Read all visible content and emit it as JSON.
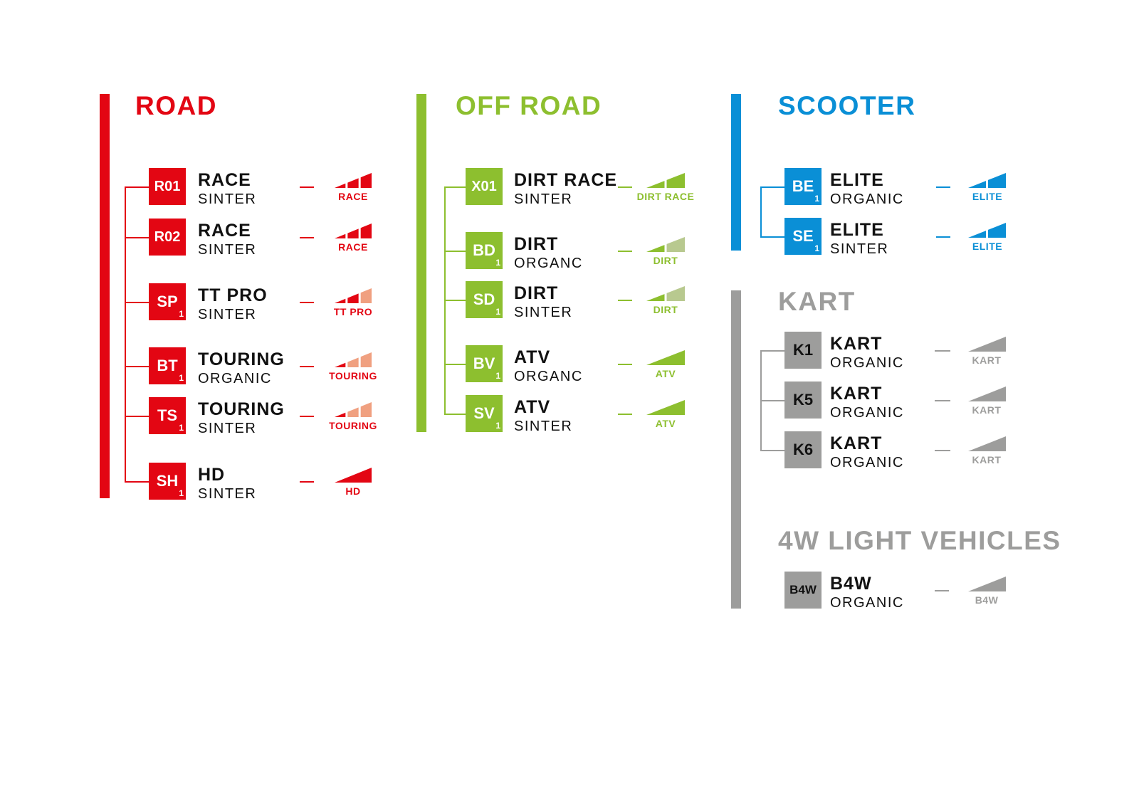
{
  "sections": [
    {
      "id": "road",
      "title": "ROAD",
      "color": "#e30613",
      "light": "#f0a080",
      "rows": [
        {
          "code": "R01",
          "sub": "",
          "name": "RACE",
          "compound": "SINTER",
          "rating": "RACE",
          "segments": 3,
          "filled": 3
        },
        {
          "code": "R02",
          "sub": "",
          "name": "RACE",
          "compound": "SINTER",
          "rating": "RACE",
          "segments": 3,
          "filled": 3
        },
        {
          "code": "SP",
          "sub": "1",
          "name": "TT PRO",
          "compound": "SINTER",
          "rating": "TT PRO",
          "segments": 3,
          "filled": 2
        },
        {
          "code": "BT",
          "sub": "1",
          "name": "TOURING",
          "compound": "ORGANIC",
          "rating": "TOURING",
          "segments": 3,
          "filled": 1
        },
        {
          "code": "TS",
          "sub": "1",
          "name": "TOURING",
          "compound": "SINTER",
          "rating": "TOURING",
          "segments": 3,
          "filled": 1
        },
        {
          "code": "SH",
          "sub": "1",
          "name": "HD",
          "compound": "SINTER",
          "rating": "HD",
          "segments": 1,
          "filled": 1
        }
      ]
    },
    {
      "id": "off-road",
      "title": "OFF ROAD",
      "color": "#8dbf2f",
      "light": "#b8c98f",
      "rows": [
        {
          "code": "X01",
          "sub": "",
          "name": "DIRT RACE",
          "compound": "SINTER",
          "rating": "DIRT RACE",
          "segments": 2,
          "filled": 2
        },
        {
          "code": "BD",
          "sub": "1",
          "name": "DIRT",
          "compound": "ORGANC",
          "rating": "DIRT",
          "segments": 2,
          "filled": 1
        },
        {
          "code": "SD",
          "sub": "1",
          "name": "DIRT",
          "compound": "SINTER",
          "rating": "DIRT",
          "segments": 2,
          "filled": 1
        },
        {
          "code": "BV",
          "sub": "1",
          "name": "ATV",
          "compound": "ORGANC",
          "rating": "ATV",
          "segments": 1,
          "filled": 1
        },
        {
          "code": "SV",
          "sub": "1",
          "name": "ATV",
          "compound": "SINTER",
          "rating": "ATV",
          "segments": 1,
          "filled": 1
        }
      ]
    },
    {
      "id": "scooter",
      "title": "SCOOTER",
      "color": "#0a8fd6",
      "light": "#0a8fd6",
      "rows": [
        {
          "code": "BE",
          "sub": "1",
          "name": "ELITE",
          "compound": "ORGANIC",
          "rating": "ELITE",
          "segments": 2,
          "filled": 2
        },
        {
          "code": "SE",
          "sub": "1",
          "name": "ELITE",
          "compound": "SINTER",
          "rating": "ELITE",
          "segments": 2,
          "filled": 2
        }
      ]
    },
    {
      "id": "kart",
      "title": "KART",
      "color": "#9d9d9c",
      "light": "#9d9d9c",
      "rows": [
        {
          "code": "K1",
          "sub": "",
          "name": "KART",
          "compound": "ORGANIC",
          "rating": "KART",
          "segments": 1,
          "filled": 1
        },
        {
          "code": "K5",
          "sub": "",
          "name": "KART",
          "compound": "ORGANIC",
          "rating": "KART",
          "segments": 1,
          "filled": 1
        },
        {
          "code": "K6",
          "sub": "",
          "name": "KART",
          "compound": "ORGANIC",
          "rating": "KART",
          "segments": 1,
          "filled": 1
        }
      ]
    },
    {
      "id": "4w-light-vehicles",
      "title": "4W LIGHT VEHICLES",
      "color": "#9d9d9c",
      "light": "#9d9d9c",
      "rows": [
        {
          "code": "B4W",
          "sub": "",
          "name": "B4W",
          "compound": "ORGANIC",
          "rating": "B4W",
          "segments": 1,
          "filled": 1
        }
      ]
    }
  ]
}
